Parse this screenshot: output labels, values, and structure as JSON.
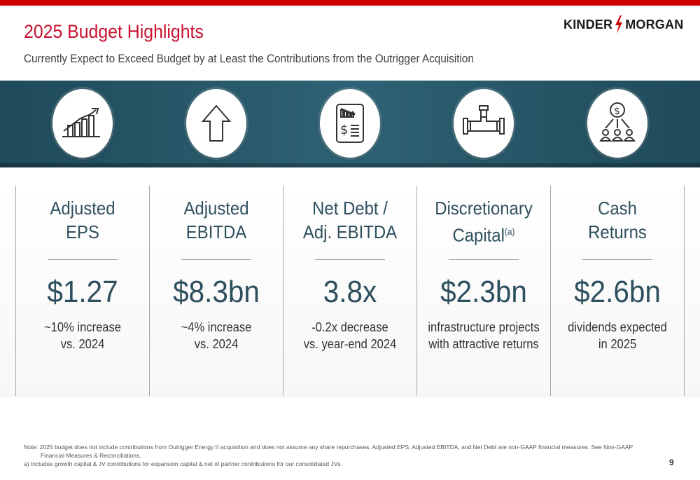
{
  "header": {
    "title": "2025 Budget Highlights",
    "subtitle": "Currently Expect to Exceed Budget by at Least the Contributions from the Outrigger Acquisition"
  },
  "logo": {
    "left": "KINDER",
    "right": "MORGAN",
    "accent_color": "#cc0000"
  },
  "colors": {
    "brand_red": "#cc0000",
    "band": "#2e6274",
    "heading": "#2e4f5e"
  },
  "icons": [
    "growth-chart-icon",
    "up-arrow-icon",
    "financial-report-icon",
    "pipe-icon",
    "dividend-people-icon"
  ],
  "metrics": [
    {
      "heading_line1": "Adjusted",
      "heading_line2": "EPS",
      "value": "$1.27",
      "desc_line1": "~10% increase",
      "desc_line2": "vs. 2024"
    },
    {
      "heading_line1": "Adjusted",
      "heading_line2": "EBITDA",
      "value": "$8.3bn",
      "desc_line1": "~4% increase",
      "desc_line2": "vs. 2024"
    },
    {
      "heading_line1": "Net Debt /",
      "heading_line2": "Adj. EBITDA",
      "value": "3.8x",
      "desc_line1": "-0.2x decrease",
      "desc_line2": "vs. year-end 2024"
    },
    {
      "heading_line1": "Discretionary",
      "heading_line2": "Capital",
      "heading_sup": "(a)",
      "value": "$2.3bn",
      "desc_line1": "infrastructure projects",
      "desc_line2": "with attractive returns"
    },
    {
      "heading_line1": "Cash",
      "heading_line2": "Returns",
      "value": "$2.6bn",
      "desc_line1": "dividends expected",
      "desc_line2": "in 2025"
    }
  ],
  "footnotes": {
    "note_line1": "Note: 2025 budget does not include contributions from Outrigger Energy II acquisition and does not assume any share repurchases. Adjusted EPS, Adjusted EBITDA, and Net Debt are non-GAAP financial measures. See Non-GAAP",
    "note_line2": "Financial Measures & Reconciliations.",
    "a": "a)   Includes growth capital & JV contributions for expansion capital & net of partner contributions for our consolidated JVs."
  },
  "page_number": "9"
}
